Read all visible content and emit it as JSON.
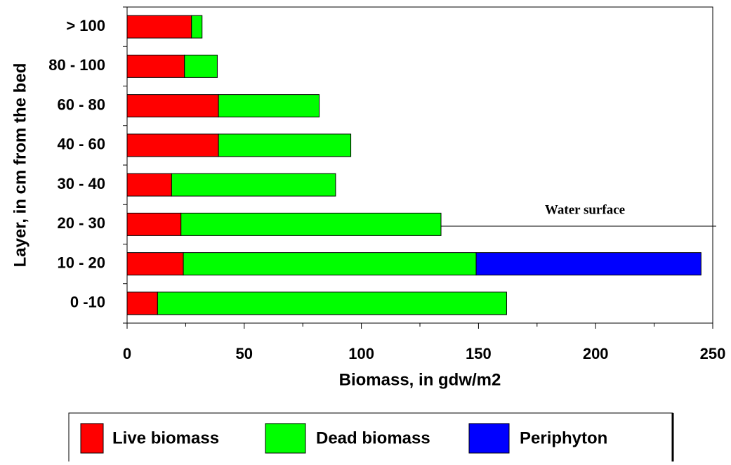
{
  "chart_data": {
    "type": "bar",
    "orientation": "horizontal",
    "stacked": true,
    "x_label": "Biomass, in gdw/m2",
    "y_label": "Layer, in cm from the bed",
    "annotation": "Water surface",
    "categories": [
      "0 -10",
      "10 - 20",
      "20 - 30",
      "30 - 40",
      "40 - 60",
      "60 - 80",
      "80 - 100",
      "> 100"
    ],
    "series": [
      {
        "name": "Live biomass",
        "color": "#ff0000",
        "values": [
          13,
          24,
          23,
          19,
          39,
          39,
          24.5,
          27.5
        ]
      },
      {
        "name": "Dead biomass",
        "color": "#00ff00",
        "values": [
          149,
          125,
          111,
          70,
          56.5,
          43,
          14,
          4.5
        ]
      },
      {
        "name": "Periphyton",
        "color": "#0000ff",
        "values": [
          0,
          96,
          0,
          0,
          0,
          0,
          0,
          0
        ]
      }
    ],
    "xlim": [
      0,
      250
    ],
    "xticks": [
      0,
      50,
      100,
      150,
      200,
      250
    ]
  }
}
